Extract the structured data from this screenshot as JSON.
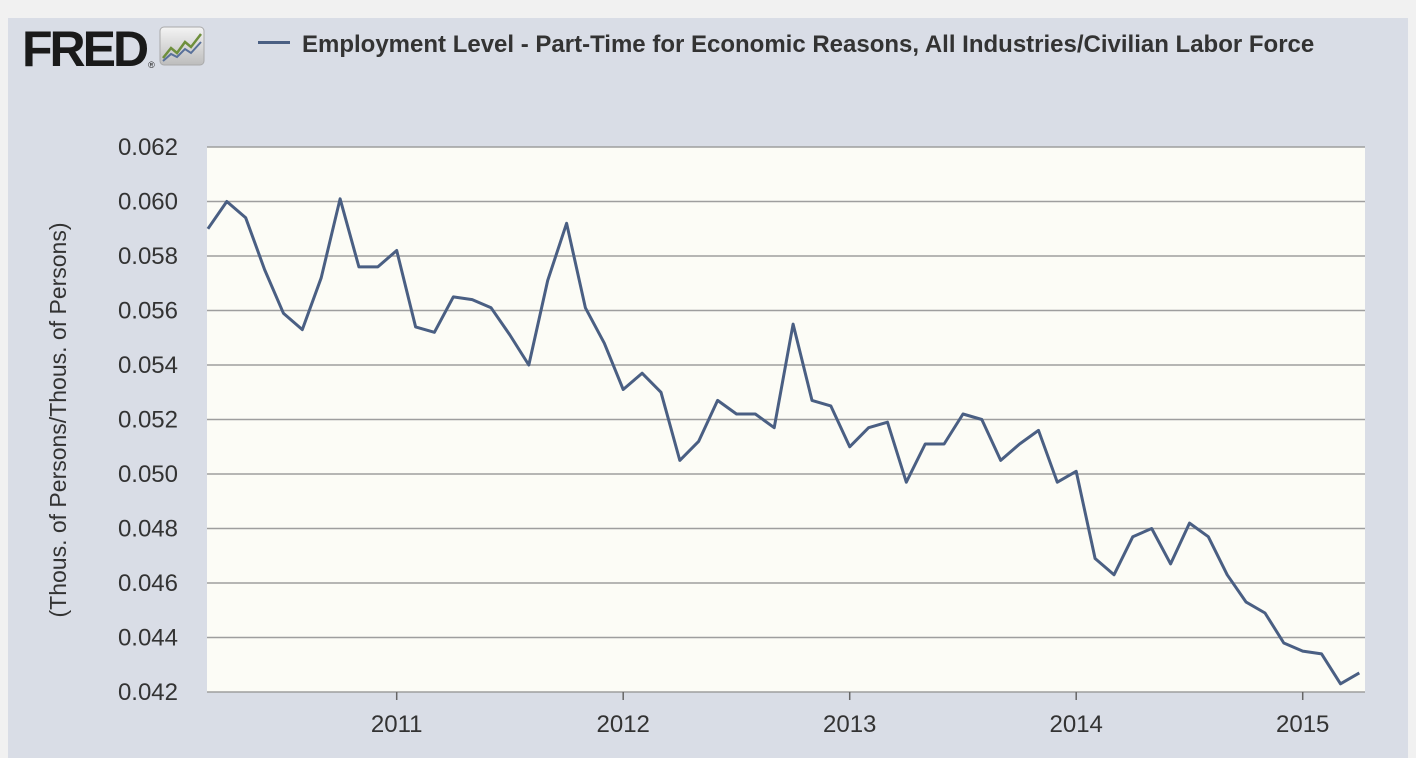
{
  "logo": {
    "text": "FRED",
    "registered": "®",
    "icon": "line-chart-icon"
  },
  "colors": {
    "series": "#4a5f83",
    "plot_bg": "#fcfcf6",
    "frame_bg": "#d9dde6",
    "grid": "#9e9e9e"
  },
  "chart_data": {
    "type": "line",
    "title": "",
    "xlabel": "",
    "ylabel": "(Thous. of Persons/Thous. of Persons)",
    "ylim": [
      0.042,
      0.062
    ],
    "xlim": [
      "2010-03",
      "2015-03"
    ],
    "grid": true,
    "legend": "top",
    "yticks": [
      "0.042",
      "0.044",
      "0.046",
      "0.048",
      "0.050",
      "0.052",
      "0.054",
      "0.056",
      "0.058",
      "0.060",
      "0.062"
    ],
    "xticks": [
      "2011",
      "2012",
      "2013",
      "2014",
      "2015"
    ],
    "series": [
      {
        "name": "Employment Level - Part-Time for Economic Reasons, All Industries/Civilian Labor Force",
        "points": [
          [
            "2010-03",
            0.059
          ],
          [
            "2010-04",
            0.06
          ],
          [
            "2010-05",
            0.0594
          ],
          [
            "2010-06",
            0.0575
          ],
          [
            "2010-07",
            0.0559
          ],
          [
            "2010-08",
            0.0553
          ],
          [
            "2010-09",
            0.0572
          ],
          [
            "2010-10",
            0.0601
          ],
          [
            "2010-11",
            0.0576
          ],
          [
            "2010-12",
            0.0576
          ],
          [
            "2011-01",
            0.0582
          ],
          [
            "2011-02",
            0.0554
          ],
          [
            "2011-03",
            0.0552
          ],
          [
            "2011-04",
            0.0565
          ],
          [
            "2011-05",
            0.0564
          ],
          [
            "2011-06",
            0.0561
          ],
          [
            "2011-07",
            0.0551
          ],
          [
            "2011-08",
            0.054
          ],
          [
            "2011-09",
            0.0571
          ],
          [
            "2011-10",
            0.0592
          ],
          [
            "2011-11",
            0.0561
          ],
          [
            "2011-12",
            0.0548
          ],
          [
            "2012-01",
            0.0531
          ],
          [
            "2012-02",
            0.0537
          ],
          [
            "2012-03",
            0.053
          ],
          [
            "2012-04",
            0.0505
          ],
          [
            "2012-05",
            0.0512
          ],
          [
            "2012-06",
            0.0527
          ],
          [
            "2012-07",
            0.0522
          ],
          [
            "2012-08",
            0.0522
          ],
          [
            "2012-09",
            0.0517
          ],
          [
            "2012-10",
            0.0555
          ],
          [
            "2012-11",
            0.0527
          ],
          [
            "2012-12",
            0.0525
          ],
          [
            "2013-01",
            0.051
          ],
          [
            "2013-02",
            0.0517
          ],
          [
            "2013-03",
            0.0519
          ],
          [
            "2013-04",
            0.0497
          ],
          [
            "2013-05",
            0.0511
          ],
          [
            "2013-06",
            0.0511
          ],
          [
            "2013-07",
            0.0522
          ],
          [
            "2013-08",
            0.052
          ],
          [
            "2013-09",
            0.0505
          ],
          [
            "2013-10",
            0.0511
          ],
          [
            "2013-11",
            0.0516
          ],
          [
            "2013-12",
            0.0497
          ],
          [
            "2014-01",
            0.0501
          ],
          [
            "2014-02",
            0.0469
          ],
          [
            "2014-03",
            0.0463
          ],
          [
            "2014-04",
            0.0477
          ],
          [
            "2014-05",
            0.048
          ],
          [
            "2014-06",
            0.0467
          ],
          [
            "2014-07",
            0.0482
          ],
          [
            "2014-08",
            0.0477
          ],
          [
            "2014-09",
            0.0463
          ],
          [
            "2014-10",
            0.0453
          ],
          [
            "2014-11",
            0.0449
          ],
          [
            "2014-12",
            0.0438
          ],
          [
            "2015-01",
            0.0435
          ],
          [
            "2015-02",
            0.0434
          ],
          [
            "2015-03",
            0.0423
          ],
          [
            "2015-04",
            0.0427
          ]
        ]
      }
    ]
  }
}
